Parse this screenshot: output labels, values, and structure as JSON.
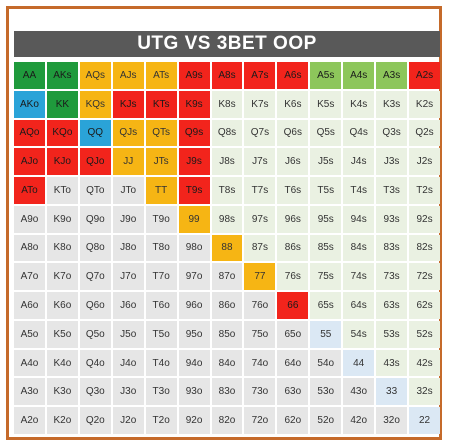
{
  "title": "UTG VS 3BET OOP",
  "colors": {
    "G": "#1f9a3c",
    "B": "#2aa3d8",
    "Y": "#f6b514",
    "R": "#f2241c",
    "L": "#8dc65b",
    "S": "#eaf1e2",
    "P": "#dbe8f4",
    "W": "#e6e6e6"
  },
  "grid": [
    [
      [
        "AA",
        "G"
      ],
      [
        "AKs",
        "G"
      ],
      [
        "AQs",
        "Y"
      ],
      [
        "AJs",
        "Y"
      ],
      [
        "ATs",
        "Y"
      ],
      [
        "A9s",
        "R"
      ],
      [
        "A8s",
        "R"
      ],
      [
        "A7s",
        "R"
      ],
      [
        "A6s",
        "R"
      ],
      [
        "A5s",
        "L"
      ],
      [
        "A4s",
        "L"
      ],
      [
        "A3s",
        "L"
      ],
      [
        "A2s",
        "R"
      ]
    ],
    [
      [
        "AKo",
        "B"
      ],
      [
        "KK",
        "G"
      ],
      [
        "KQs",
        "Y"
      ],
      [
        "KJs",
        "R"
      ],
      [
        "KTs",
        "R"
      ],
      [
        "K9s",
        "R"
      ],
      [
        "K8s",
        "S"
      ],
      [
        "K7s",
        "S"
      ],
      [
        "K6s",
        "S"
      ],
      [
        "K5s",
        "S"
      ],
      [
        "K4s",
        "S"
      ],
      [
        "K3s",
        "S"
      ],
      [
        "K2s",
        "S"
      ]
    ],
    [
      [
        "AQo",
        "R"
      ],
      [
        "KQo",
        "R"
      ],
      [
        "QQ",
        "B"
      ],
      [
        "QJs",
        "Y"
      ],
      [
        "QTs",
        "Y"
      ],
      [
        "Q9s",
        "R"
      ],
      [
        "Q8s",
        "S"
      ],
      [
        "Q7s",
        "S"
      ],
      [
        "Q6s",
        "S"
      ],
      [
        "Q5s",
        "S"
      ],
      [
        "Q4s",
        "S"
      ],
      [
        "Q3s",
        "S"
      ],
      [
        "Q2s",
        "S"
      ]
    ],
    [
      [
        "AJo",
        "R"
      ],
      [
        "KJo",
        "R"
      ],
      [
        "QJo",
        "R"
      ],
      [
        "JJ",
        "Y"
      ],
      [
        "JTs",
        "Y"
      ],
      [
        "J9s",
        "R"
      ],
      [
        "J8s",
        "S"
      ],
      [
        "J7s",
        "S"
      ],
      [
        "J6s",
        "S"
      ],
      [
        "J5s",
        "S"
      ],
      [
        "J4s",
        "S"
      ],
      [
        "J3s",
        "S"
      ],
      [
        "J2s",
        "S"
      ]
    ],
    [
      [
        "ATo",
        "R"
      ],
      [
        "KTo",
        "W"
      ],
      [
        "QTo",
        "W"
      ],
      [
        "JTo",
        "W"
      ],
      [
        "TT",
        "Y"
      ],
      [
        "T9s",
        "R"
      ],
      [
        "T8s",
        "S"
      ],
      [
        "T7s",
        "S"
      ],
      [
        "T6s",
        "S"
      ],
      [
        "T5s",
        "S"
      ],
      [
        "T4s",
        "S"
      ],
      [
        "T3s",
        "S"
      ],
      [
        "T2s",
        "S"
      ]
    ],
    [
      [
        "A9o",
        "W"
      ],
      [
        "K9o",
        "W"
      ],
      [
        "Q9o",
        "W"
      ],
      [
        "J9o",
        "W"
      ],
      [
        "T9o",
        "W"
      ],
      [
        "99",
        "Y"
      ],
      [
        "98s",
        "S"
      ],
      [
        "97s",
        "S"
      ],
      [
        "96s",
        "S"
      ],
      [
        "95s",
        "S"
      ],
      [
        "94s",
        "S"
      ],
      [
        "93s",
        "S"
      ],
      [
        "92s",
        "S"
      ]
    ],
    [
      [
        "A8o",
        "W"
      ],
      [
        "K8o",
        "W"
      ],
      [
        "Q8o",
        "W"
      ],
      [
        "J8o",
        "W"
      ],
      [
        "T8o",
        "W"
      ],
      [
        "98o",
        "W"
      ],
      [
        "88",
        "Y"
      ],
      [
        "87s",
        "S"
      ],
      [
        "86s",
        "S"
      ],
      [
        "85s",
        "S"
      ],
      [
        "84s",
        "S"
      ],
      [
        "83s",
        "S"
      ],
      [
        "82s",
        "S"
      ]
    ],
    [
      [
        "A7o",
        "W"
      ],
      [
        "K7o",
        "W"
      ],
      [
        "Q7o",
        "W"
      ],
      [
        "J7o",
        "W"
      ],
      [
        "T7o",
        "W"
      ],
      [
        "97o",
        "W"
      ],
      [
        "87o",
        "W"
      ],
      [
        "77",
        "Y"
      ],
      [
        "76s",
        "S"
      ],
      [
        "75s",
        "S"
      ],
      [
        "74s",
        "S"
      ],
      [
        "73s",
        "S"
      ],
      [
        "72s",
        "S"
      ]
    ],
    [
      [
        "A6o",
        "W"
      ],
      [
        "K6o",
        "W"
      ],
      [
        "Q6o",
        "W"
      ],
      [
        "J6o",
        "W"
      ],
      [
        "T6o",
        "W"
      ],
      [
        "96o",
        "W"
      ],
      [
        "86o",
        "W"
      ],
      [
        "76o",
        "W"
      ],
      [
        "66",
        "R"
      ],
      [
        "65s",
        "S"
      ],
      [
        "64s",
        "S"
      ],
      [
        "63s",
        "S"
      ],
      [
        "62s",
        "S"
      ]
    ],
    [
      [
        "A5o",
        "W"
      ],
      [
        "K5o",
        "W"
      ],
      [
        "Q5o",
        "W"
      ],
      [
        "J5o",
        "W"
      ],
      [
        "T5o",
        "W"
      ],
      [
        "95o",
        "W"
      ],
      [
        "85o",
        "W"
      ],
      [
        "75o",
        "W"
      ],
      [
        "65o",
        "W"
      ],
      [
        "55",
        "P"
      ],
      [
        "54s",
        "S"
      ],
      [
        "53s",
        "S"
      ],
      [
        "52s",
        "S"
      ]
    ],
    [
      [
        "A4o",
        "W"
      ],
      [
        "K4o",
        "W"
      ],
      [
        "Q4o",
        "W"
      ],
      [
        "J4o",
        "W"
      ],
      [
        "T4o",
        "W"
      ],
      [
        "94o",
        "W"
      ],
      [
        "84o",
        "W"
      ],
      [
        "74o",
        "W"
      ],
      [
        "64o",
        "W"
      ],
      [
        "54o",
        "W"
      ],
      [
        "44",
        "P"
      ],
      [
        "43s",
        "S"
      ],
      [
        "42s",
        "S"
      ]
    ],
    [
      [
        "A3o",
        "W"
      ],
      [
        "K3o",
        "W"
      ],
      [
        "Q3o",
        "W"
      ],
      [
        "J3o",
        "W"
      ],
      [
        "T3o",
        "W"
      ],
      [
        "93o",
        "W"
      ],
      [
        "83o",
        "W"
      ],
      [
        "73o",
        "W"
      ],
      [
        "63o",
        "W"
      ],
      [
        "53o",
        "W"
      ],
      [
        "43o",
        "W"
      ],
      [
        "33",
        "P"
      ],
      [
        "32s",
        "S"
      ]
    ],
    [
      [
        "A2o",
        "W"
      ],
      [
        "K2o",
        "W"
      ],
      [
        "Q2o",
        "W"
      ],
      [
        "J2o",
        "W"
      ],
      [
        "T2o",
        "W"
      ],
      [
        "92o",
        "W"
      ],
      [
        "82o",
        "W"
      ],
      [
        "72o",
        "W"
      ],
      [
        "62o",
        "W"
      ],
      [
        "52o",
        "W"
      ],
      [
        "42o",
        "W"
      ],
      [
        "32o",
        "W"
      ],
      [
        "22",
        "P"
      ]
    ]
  ]
}
